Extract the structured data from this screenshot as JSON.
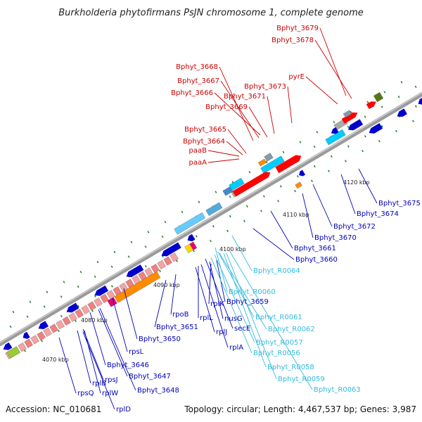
{
  "title": "Burkholderia phytofirmans PsJN chromosome 1, complete genome",
  "footer": {
    "accession": "Accession: NC_010681",
    "summary": "Topology: circular; Length: 4,467,537 bp; Genes: 3,987"
  },
  "colors": {
    "label_top": "#cc0000",
    "label_bottom": "#0000bb",
    "label_rna": "#33bbdd",
    "backbone": "#888888",
    "tick": "#2e7d32"
  },
  "tick_labels": [
    "4070 kbp",
    "4080 kbp",
    "4090 kbp",
    "4100 kbp",
    "4110 kbp",
    "4120 kbp"
  ],
  "labels_top": [
    "Bphyt_3679",
    "Bphyt_3678",
    "Bphyt_3668",
    "Bphyt_3667",
    "Bphyt_3666",
    "Bphyt_3673",
    "pyrE",
    "Bphyt_3671",
    "Bphyt_3669",
    "Bphyt_3665",
    "Bphyt_3664",
    "paaB",
    "paaA"
  ],
  "labels_bottom": [
    "Bphyt_3675",
    "Bphyt_3674",
    "Bphyt_3672",
    "Bphyt_3670",
    "Bphyt_3661",
    "Bphyt_3660",
    "rplK",
    "Bphyt_3659",
    "nusG",
    "rpoB",
    "rplL",
    "Bphyt_3651",
    "secE",
    "rplJ",
    "rplA",
    "Bphyt_3650",
    "rpsL",
    "Bphyt_3646",
    "Bphyt_3647",
    "Bphyt_3648",
    "rplB",
    "rpsJ",
    "rpsQ",
    "rplW",
    "rplD"
  ],
  "labels_rna": [
    "Bphyt_R0064",
    "Bphyt_R0060",
    "Bphyt_R0061",
    "Bphyt_R0062",
    "Bphyt_R0057",
    "Bphyt_R0056",
    "Bphyt_R0058",
    "Bphyt_R0059",
    "Bphyt_R0063"
  ]
}
